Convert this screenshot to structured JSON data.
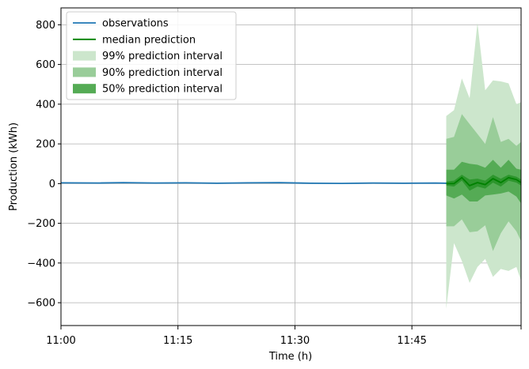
{
  "chart_data": {
    "type": "area",
    "xlabel": "Time (h)",
    "ylabel": "Production (kWh)",
    "x_ticks": [
      {
        "minute": 0,
        "label": "11:00"
      },
      {
        "minute": 15,
        "label": "11:15"
      },
      {
        "minute": 30,
        "label": "11:30"
      },
      {
        "minute": 45,
        "label": "11:45"
      }
    ],
    "xlim_minutes": [
      0,
      59
    ],
    "y_ticks": [
      {
        "value": 800,
        "label": "800"
      },
      {
        "value": 600,
        "label": "600"
      },
      {
        "value": 400,
        "label": "400"
      },
      {
        "value": 200,
        "label": "200"
      },
      {
        "value": 0,
        "label": "0"
      },
      {
        "value": -200,
        "label": "−200"
      },
      {
        "value": -400,
        "label": "−400"
      },
      {
        "value": -600,
        "label": "−600"
      }
    ],
    "ylim": [
      -715,
      885
    ],
    "grid": true,
    "legend_position": "top-left",
    "legend": [
      {
        "label": "observations",
        "kind": "line",
        "color": "#1f77b4"
      },
      {
        "label": "median prediction",
        "kind": "line",
        "color": "#008000"
      },
      {
        "label": "99% prediction interval",
        "kind": "band",
        "color": "#cce6cc"
      },
      {
        "label": "90% prediction interval",
        "kind": "band",
        "color": "#99cd99"
      },
      {
        "label": "50% prediction interval",
        "kind": "band",
        "color": "#55ab55"
      }
    ],
    "observations": {
      "color": "#1f77b4",
      "x_minutes": [
        0,
        5,
        8,
        12,
        16,
        20,
        24,
        28,
        32,
        36,
        40,
        44,
        48,
        49.4
      ],
      "y": [
        4,
        3,
        5,
        3,
        4,
        2,
        4,
        5,
        2,
        1,
        3,
        2,
        3,
        2
      ]
    },
    "prediction": {
      "x_minutes": [
        49.4,
        50.4,
        51.4,
        52.4,
        53.4,
        54.4,
        55.4,
        56.4,
        57.4,
        58.4,
        59.0
      ],
      "median": [
        0,
        0,
        30,
        -10,
        5,
        -5,
        25,
        5,
        30,
        20,
        5
      ],
      "median_color": "#008000",
      "intervals": [
        {
          "name": "99% prediction interval",
          "color": "#cce6cc",
          "upper": [
            340,
            370,
            530,
            430,
            810,
            470,
            520,
            515,
            505,
            400,
            410
          ],
          "lower": [
            -630,
            -300,
            -390,
            -500,
            -420,
            -380,
            -470,
            -430,
            -440,
            -420,
            -490
          ]
        },
        {
          "name": "90% prediction interval",
          "color": "#99cd99",
          "upper": [
            225,
            235,
            350,
            300,
            250,
            200,
            335,
            210,
            225,
            190,
            210
          ],
          "lower": [
            -215,
            -215,
            -180,
            -245,
            -240,
            -210,
            -340,
            -250,
            -190,
            -240,
            -290
          ]
        },
        {
          "name": "50% prediction interval",
          "color": "#55ab55",
          "upper": [
            70,
            70,
            110,
            100,
            95,
            80,
            120,
            80,
            120,
            75,
            70
          ],
          "lower": [
            -60,
            -75,
            -55,
            -90,
            -90,
            -60,
            -55,
            -50,
            -40,
            -65,
            -100
          ]
        },
        {
          "name": "inner band",
          "color": "#2d962d",
          "upper": [
            10,
            15,
            45,
            20,
            25,
            15,
            45,
            25,
            45,
            35,
            20
          ],
          "lower": [
            -10,
            -15,
            15,
            -35,
            -15,
            -25,
            5,
            -15,
            15,
            5,
            -10
          ]
        }
      ]
    }
  }
}
